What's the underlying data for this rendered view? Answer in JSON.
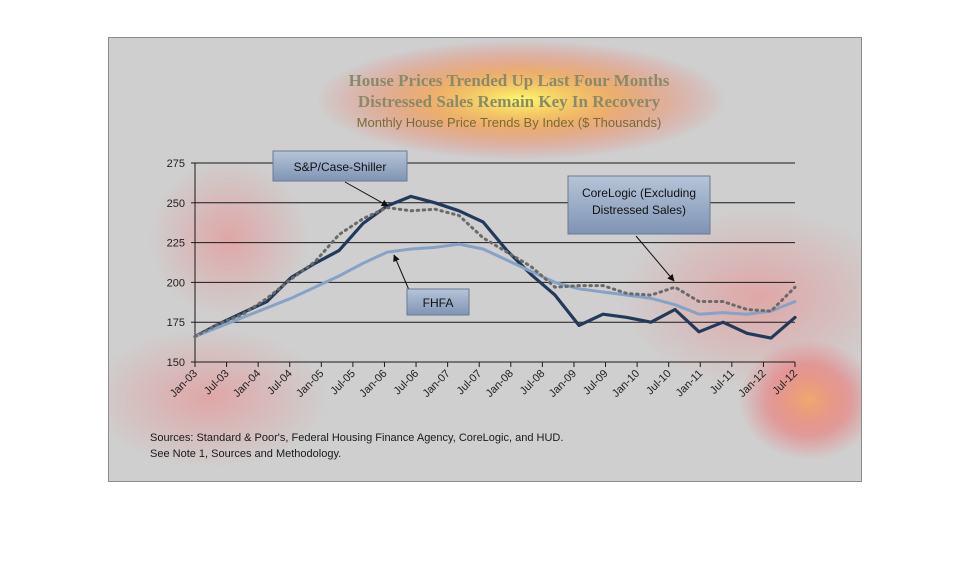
{
  "chart_data": {
    "type": "line",
    "title_lines": [
      "House Prices Trended Up Last Four Months",
      "Distressed Sales Remain Key In Recovery"
    ],
    "subtitle": "Monthly House Price Trends By Index ($ Thousands)",
    "x_tick_labels": [
      "Jan-03",
      "Jul-03",
      "Jan-04",
      "Jul-04",
      "Jan-05",
      "Jul-05",
      "Jan-06",
      "Jul-06",
      "Jan-07",
      "Jul-07",
      "Jan-08",
      "Jul-08",
      "Jan-09",
      "Jul-09",
      "Jan-10",
      "Jul-10",
      "Jan-11",
      "Jul-11",
      "Jan-12",
      "Jul-12"
    ],
    "y_ticks": [
      150,
      175,
      200,
      225,
      250,
      275
    ],
    "ylim": [
      150,
      275
    ],
    "grid": true,
    "series": [
      {
        "name": "S&P/Case-Shiller",
        "color": "#223a5a",
        "style": "solid",
        "values": [
          166,
          174,
          181,
          188,
          203,
          212,
          220,
          237,
          248,
          254,
          250,
          245,
          238,
          220,
          205,
          192,
          173,
          180,
          178,
          175,
          183,
          169,
          175,
          168,
          165,
          178
        ]
      },
      {
        "name": "FHFA",
        "color": "#86a3c6",
        "style": "solid",
        "values": [
          166,
          172,
          178,
          184,
          190,
          197,
          204,
          212,
          219,
          221,
          222,
          224,
          221,
          214,
          207,
          200,
          196,
          194,
          192,
          190,
          186,
          180,
          181,
          180,
          182,
          188
        ]
      },
      {
        "name": "CoreLogic (Excluding Distressed Sales)",
        "color": "#6a6a6a",
        "style": "dotted",
        "values": [
          166,
          174,
          180,
          190,
          202,
          213,
          230,
          240,
          247,
          245,
          246,
          242,
          228,
          219,
          210,
          197,
          198,
          198,
          193,
          192,
          197,
          188,
          188,
          183,
          182,
          197
        ]
      }
    ],
    "callouts": {
      "case_shiller": "S&P/Case-Shiller",
      "corelogic_line1": "CoreLogic (Excluding",
      "corelogic_line2": "Distressed Sales)",
      "fhfa": "FHFA"
    },
    "source_line1": "Sources:  Standard & Poor's, Federal Housing Finance Agency, CoreLogic, and HUD.",
    "source_line2": "See Note 1, Sources and Methodology."
  }
}
